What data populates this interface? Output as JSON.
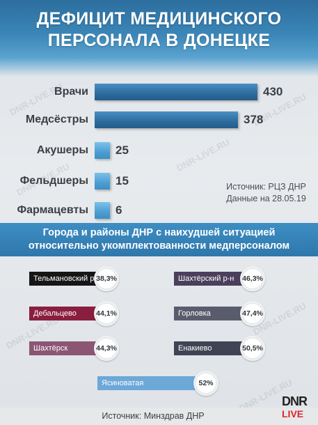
{
  "title_line1": "ДЕФИЦИТ МЕДИЦИНСКОГО",
  "title_line2": "ПЕРСОНАЛА В ДОНЕЦКЕ",
  "watermark": "DNR-LIVE.RU",
  "source_top_line1": "Источник: РЦЗ ДНР",
  "source_top_line2": "Данные на 28.05.19",
  "band_line1": "Города и районы ДНР с наихудшей ситуацией",
  "band_line2": "относительно укомплектованности медперсоналом",
  "source_bottom": "Источник: Минздрав ДНР",
  "logo_top": "DNR",
  "logo_bottom": "LIVE",
  "colors": {
    "bar_dark": "#2d6b9d",
    "bar_light": "#4b9ed2",
    "band": "#3481b6",
    "tel": "#161616",
    "shakhtarsk_rn": "#4b3f5c",
    "debal": "#8a1e3e",
    "gorlovka": "#5a5c6e",
    "shakhtersk": "#8b5674",
    "enakievo": "#3f4353",
    "yasin": "#6ca8d8",
    "logo_red": "#e0242b"
  },
  "chart_data": [
    {
      "type": "bar",
      "orientation": "horizontal",
      "categories": [
        "Врачи",
        "Медсёстры",
        "Акушеры",
        "Фельдшеры",
        "Фармацевты"
      ],
      "values": [
        430,
        378,
        25,
        15,
        6
      ],
      "xlim": [
        0,
        430
      ]
    },
    {
      "type": "table",
      "items": [
        {
          "name": "Тельмановский р-н",
          "value": "38,3%",
          "pct": 38.3
        },
        {
          "name": "Шахтёрский р-н",
          "value": "46,3%",
          "pct": 46.3
        },
        {
          "name": "Дебальцево",
          "value": "44,1%",
          "pct": 44.1
        },
        {
          "name": "Горловка",
          "value": "47,4%",
          "pct": 47.4
        },
        {
          "name": "Шахтёрск",
          "value": "44,3%",
          "pct": 44.3
        },
        {
          "name": "Енакиево",
          "value": "50,5%",
          "pct": 50.5
        },
        {
          "name": "Ясиноватая",
          "value": "52%",
          "pct": 52
        }
      ]
    }
  ]
}
